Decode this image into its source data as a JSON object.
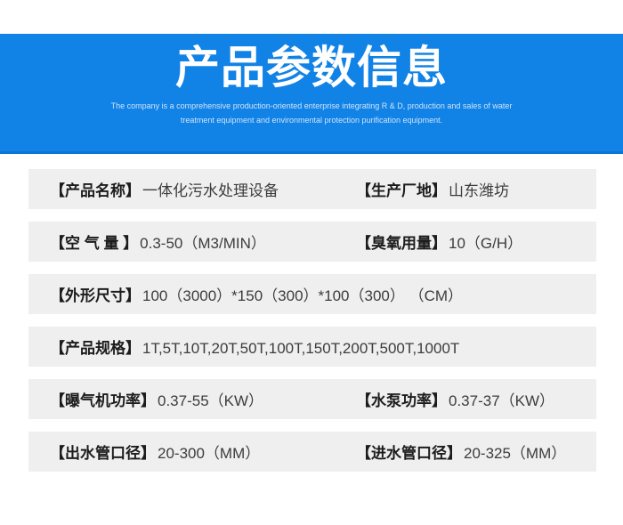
{
  "header": {
    "title": "产品参数信息",
    "subtitle": "The company is a comprehensive production-oriented enterprise integrating R & D, production and sales of water treatment equipment and environmental protection purification equipment.",
    "background_color": "#1182e6",
    "title_color": "#ffffff"
  },
  "rows": [
    {
      "cells": [
        {
          "label": "【产品名称】",
          "value": "一体化污水处理设备"
        },
        {
          "label": "【生产厂地】",
          "value": "山东潍坊"
        }
      ]
    },
    {
      "cells": [
        {
          "label": "【空 气 量 】",
          "value": "0.3-50（M3/MIN）"
        },
        {
          "label": "【臭氧用量】",
          "value": "10（G/H）"
        }
      ]
    },
    {
      "cells": [
        {
          "label": "【外形尺寸】",
          "value": "100（3000）*150（300）*100（300） （CM）"
        }
      ]
    },
    {
      "cells": [
        {
          "label": "【产品规格】",
          "value": "1T,5T,10T,20T,50T,100T,150T,200T,500T,1000T"
        }
      ]
    },
    {
      "cells": [
        {
          "label": "【曝气机功率】",
          "value": "0.37-55（KW）"
        },
        {
          "label": "【水泵功率】",
          "value": "0.37-37（KW）"
        }
      ]
    },
    {
      "cells": [
        {
          "label": "【出水管口径】",
          "value": "20-300（MM）"
        },
        {
          "label": "【进水管口径】",
          "value": "20-325（MM）"
        }
      ]
    }
  ],
  "colors": {
    "row_background": "#efeff0",
    "label_text": "#1c1c1c",
    "value_text": "#3c3c3c"
  }
}
